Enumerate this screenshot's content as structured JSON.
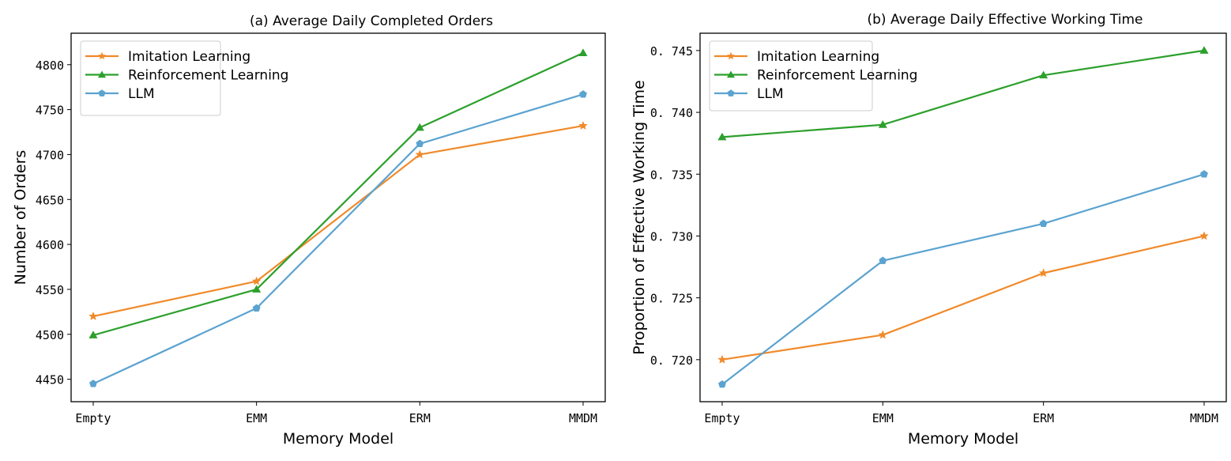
{
  "chart_data": [
    {
      "type": "line",
      "title": "(a)  Average Daily Completed Orders",
      "xlabel": "Memory Model",
      "ylabel": "Number of Orders",
      "categories": [
        "Empty",
        "EMM",
        "ERM",
        "MMDM"
      ],
      "ylim": [
        4425,
        4835
      ],
      "yticks": [
        4450,
        4500,
        4550,
        4600,
        4650,
        4700,
        4750,
        4800
      ],
      "ytick_labels": [
        "4450",
        "4500",
        "4550",
        "4600",
        "4650",
        "4700",
        "4750",
        "4800"
      ],
      "grid": false,
      "legend_position": "top-left",
      "series": [
        {
          "name": "Imitation Learning",
          "color": "#f08a2a",
          "marker": "star",
          "values": [
            4520,
            4559,
            4700,
            4732
          ]
        },
        {
          "name": "Reinforcement Learning",
          "color": "#2ca02c",
          "marker": "triangle",
          "values": [
            4499,
            4550,
            4730,
            4813
          ]
        },
        {
          "name": "LLM",
          "color": "#5ba3d0",
          "marker": "pentagon",
          "values": [
            4445,
            4529,
            4712,
            4767
          ]
        }
      ]
    },
    {
      "type": "line",
      "title": "(b)  Average Daily Effective Working Time",
      "xlabel": "Memory Model",
      "ylabel": "Proportion of Effective Working Time",
      "categories": [
        "Empty",
        "EMM",
        "ERM",
        "MMDM"
      ],
      "ylim": [
        0.7166,
        0.7464
      ],
      "yticks": [
        0.72,
        0.725,
        0.73,
        0.735,
        0.74,
        0.745
      ],
      "ytick_labels": [
        "0. 720",
        "0. 725",
        "0. 730",
        "0. 735",
        "0. 740",
        "0. 745"
      ],
      "grid": false,
      "legend_position": "top-left",
      "series": [
        {
          "name": "Imitation Learning",
          "color": "#f08a2a",
          "marker": "star",
          "values": [
            0.72,
            0.722,
            0.727,
            0.73
          ]
        },
        {
          "name": "Reinforcement Learning",
          "color": "#2ca02c",
          "marker": "triangle",
          "values": [
            0.738,
            0.739,
            0.743,
            0.745
          ]
        },
        {
          "name": "LLM",
          "color": "#5ba3d0",
          "marker": "pentagon",
          "values": [
            0.718,
            0.728,
            0.731,
            0.735
          ]
        }
      ]
    }
  ]
}
